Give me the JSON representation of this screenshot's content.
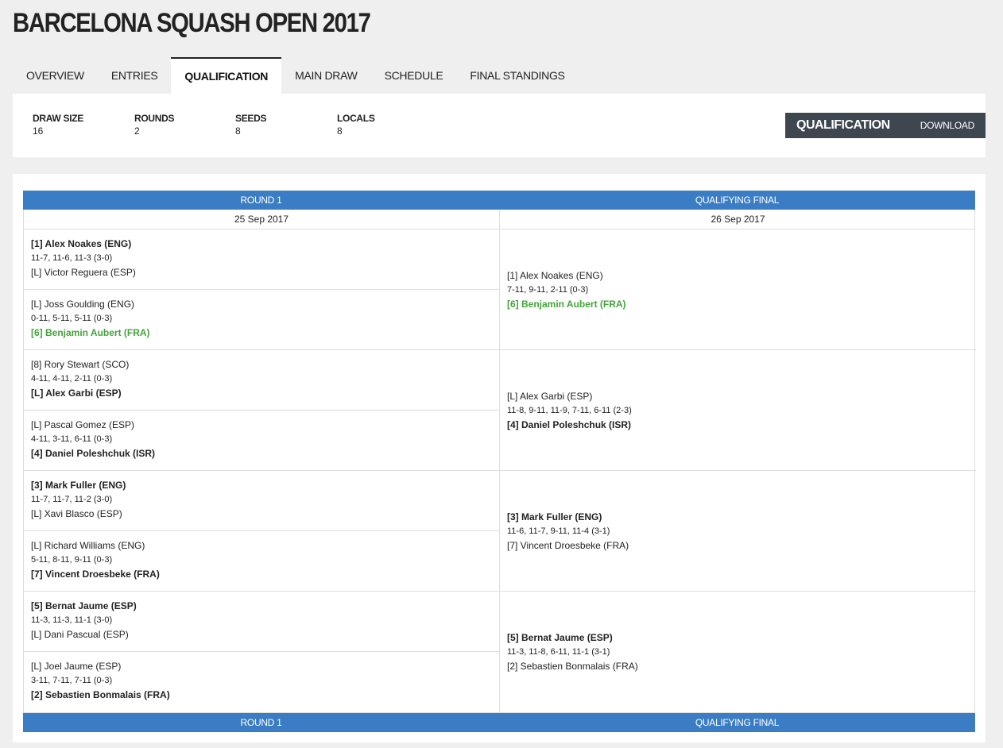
{
  "title": "BARCELONA SQUASH OPEN 2017",
  "tabs": [
    "OVERVIEW",
    "ENTRIES",
    "QUALIFICATION",
    "MAIN DRAW",
    "SCHEDULE",
    "FINAL STANDINGS"
  ],
  "active_tab": "QUALIFICATION",
  "stats": [
    {
      "label": "DRAW SIZE",
      "value": "16"
    },
    {
      "label": "ROUNDS",
      "value": "2"
    },
    {
      "label": "SEEDS",
      "value": "8"
    },
    {
      "label": "LOCALS",
      "value": "8"
    }
  ],
  "download": {
    "title": "QUALIFICATION",
    "link": "DOWNLOAD"
  },
  "rounds": [
    {
      "name": "ROUND 1",
      "date": "25 Sep 2017"
    },
    {
      "name": "QUALIFYING FINAL",
      "date": "26 Sep 2017"
    }
  ],
  "round1": [
    {
      "p1": "[1] Alex Noakes (ENG)",
      "score": "11-7, 11-6, 11-3 (3-0)",
      "p2": "[L] Victor Reguera (ESP)",
      "winner": 1
    },
    {
      "p1": "[L] Joss Goulding (ENG)",
      "score": "0-11, 5-11, 5-11 (0-3)",
      "p2": "[6] Benjamin Aubert (FRA)",
      "winner": 2,
      "qualified": 2
    },
    {
      "p1": "[8] Rory Stewart (SCO)",
      "score": "4-11, 4-11, 2-11 (0-3)",
      "p2": "[L] Alex Garbi (ESP)",
      "winner": 2
    },
    {
      "p1": "[L] Pascal Gomez (ESP)",
      "score": "4-11, 3-11, 6-11 (0-3)",
      "p2": "[4] Daniel Poleshchuk (ISR)",
      "winner": 2
    },
    {
      "p1": "[3] Mark Fuller (ENG)",
      "score": "11-7, 11-7, 11-2 (3-0)",
      "p2": "[L] Xavi Blasco (ESP)",
      "winner": 1
    },
    {
      "p1": "[L] Richard Williams (ENG)",
      "score": "5-11, 8-11, 9-11 (0-3)",
      "p2": "[7] Vincent Droesbeke (FRA)",
      "winner": 2
    },
    {
      "p1": "[5] Bernat Jaume (ESP)",
      "score": "11-3, 11-3, 11-1 (3-0)",
      "p2": "[L] Dani Pascual (ESP)",
      "winner": 1
    },
    {
      "p1": "[L] Joel Jaume (ESP)",
      "score": "3-11, 7-11, 7-11 (0-3)",
      "p2": "[2] Sebastien Bonmalais (FRA)",
      "winner": 2
    }
  ],
  "qualifying_final": [
    {
      "p1": "[1] Alex Noakes (ENG)",
      "score": "7-11, 9-11, 2-11 (0-3)",
      "p2": "[6] Benjamin Aubert (FRA)",
      "winner": 2,
      "qualified": 2
    },
    {
      "p1": "[L] Alex Garbi (ESP)",
      "score": "11-8, 9-11, 11-9, 7-11, 6-11 (2-3)",
      "p2": "[4] Daniel Poleshchuk (ISR)",
      "winner": 2
    },
    {
      "p1": "[3] Mark Fuller (ENG)",
      "score": "11-6, 11-7, 9-11, 11-4 (3-1)",
      "p2": "[7] Vincent Droesbeke (FRA)",
      "winner": 1
    },
    {
      "p1": "[5] Bernat Jaume (ESP)",
      "score": "11-3, 11-8, 6-11, 11-1 (3-1)",
      "p2": "[2] Sebastien Bonmalais (FRA)",
      "winner": 1
    }
  ],
  "colors": {
    "header_blue": "#3b7dc5",
    "qualified_green": "#43a33a",
    "dark_box": "#3e4650"
  }
}
